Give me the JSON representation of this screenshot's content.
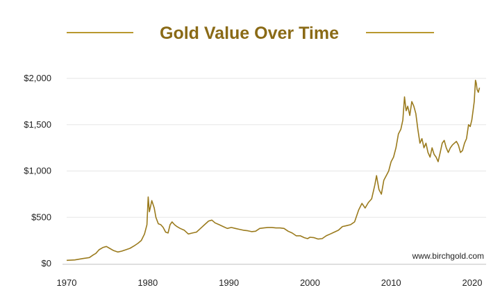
{
  "chart_data": {
    "type": "line",
    "title": "Gold Value Over Time",
    "source_label": "www.birchgold.com",
    "xlabel": "",
    "ylabel": "",
    "xlim": [
      1970,
      2021
    ],
    "ylim": [
      0,
      2000
    ],
    "x_ticks": [
      1970,
      1980,
      1990,
      2000,
      2010,
      2020
    ],
    "x_tick_labels": [
      "1970",
      "1980",
      "1990",
      "2000",
      "2010",
      "2020"
    ],
    "y_ticks": [
      0,
      500,
      1000,
      1500,
      2000
    ],
    "y_tick_labels": [
      "$0",
      "$500",
      "$1,000",
      "$1,500",
      "$2,000"
    ],
    "grid": "horizontal",
    "legend": "none",
    "colors": {
      "line": "#9a7a1c",
      "title": "#8a6a16",
      "title_rule": "#b8982e",
      "grid": "#e6e6e6",
      "axis": "#bfbfbf"
    },
    "series": [
      {
        "x": [
          1970,
          1971,
          1972,
          1972.8,
          1973.3,
          1973.6,
          1974.0,
          1974.5,
          1974.9,
          1975.3,
          1975.8,
          1976.3,
          1976.8,
          1977.3,
          1977.8,
          1978.3,
          1978.8,
          1979.2,
          1979.6,
          1979.9,
          1980.05,
          1980.2,
          1980.35,
          1980.5,
          1980.65,
          1980.8,
          1981.0,
          1981.3,
          1981.6,
          1981.9,
          1982.2,
          1982.5,
          1982.75,
          1983.0,
          1983.3,
          1983.6,
          1984.0,
          1984.5,
          1985.0,
          1985.5,
          1986.0,
          1986.5,
          1987.0,
          1987.5,
          1987.9,
          1988.3,
          1988.8,
          1989.3,
          1989.8,
          1990.3,
          1990.8,
          1991.3,
          1991.8,
          1992.3,
          1992.8,
          1993.3,
          1993.8,
          1994.3,
          1994.8,
          1995.3,
          1995.8,
          1996.3,
          1996.8,
          1997.3,
          1997.8,
          1998.3,
          1998.8,
          1999.3,
          1999.7,
          2000.0,
          2000.5,
          2001.0,
          2001.5,
          2002.0,
          2002.5,
          2003.0,
          2003.5,
          2004.0,
          2004.5,
          2005.0,
          2005.5,
          2006.0,
          2006.4,
          2006.8,
          2007.2,
          2007.6,
          2008.0,
          2008.2,
          2008.5,
          2008.8,
          2009.1,
          2009.4,
          2009.7,
          2010.0,
          2010.3,
          2010.6,
          2010.9,
          2011.2,
          2011.45,
          2011.65,
          2011.85,
          2012.05,
          2012.3,
          2012.55,
          2012.8,
          2013.05,
          2013.3,
          2013.55,
          2013.8,
          2014.05,
          2014.3,
          2014.55,
          2014.8,
          2015.05,
          2015.3,
          2015.55,
          2015.8,
          2016.05,
          2016.3,
          2016.55,
          2016.8,
          2017.05,
          2017.3,
          2017.55,
          2017.8,
          2018.05,
          2018.3,
          2018.55,
          2018.8,
          2019.05,
          2019.3,
          2019.55,
          2019.75,
          2019.95,
          2020.1,
          2020.25,
          2020.4,
          2020.5,
          2020.6,
          2020.75,
          2020.9
        ],
        "y": [
          35,
          40,
          55,
          65,
          95,
          110,
          150,
          175,
          185,
          165,
          140,
          125,
          135,
          150,
          165,
          190,
          220,
          250,
          320,
          420,
          720,
          560,
          620,
          680,
          640,
          600,
          500,
          430,
          420,
          390,
          340,
          330,
          420,
          450,
          420,
          400,
          380,
          360,
          320,
          330,
          340,
          380,
          420,
          460,
          470,
          440,
          420,
          400,
          380,
          390,
          380,
          370,
          360,
          355,
          345,
          350,
          380,
          385,
          390,
          390,
          385,
          385,
          380,
          350,
          330,
          300,
          300,
          280,
          270,
          285,
          280,
          265,
          270,
          300,
          320,
          340,
          360,
          400,
          410,
          420,
          450,
          580,
          650,
          600,
          660,
          700,
          850,
          950,
          800,
          750,
          900,
          950,
          1000,
          1100,
          1150,
          1250,
          1400,
          1450,
          1550,
          1800,
          1650,
          1700,
          1600,
          1750,
          1700,
          1620,
          1450,
          1300,
          1350,
          1250,
          1300,
          1200,
          1150,
          1250,
          1180,
          1150,
          1100,
          1200,
          1300,
          1330,
          1250,
          1200,
          1250,
          1280,
          1300,
          1320,
          1280,
          1200,
          1220,
          1300,
          1350,
          1500,
          1480,
          1550,
          1650,
          1750,
          1980,
          1950,
          1880,
          1850,
          1900
        ]
      }
    ]
  }
}
